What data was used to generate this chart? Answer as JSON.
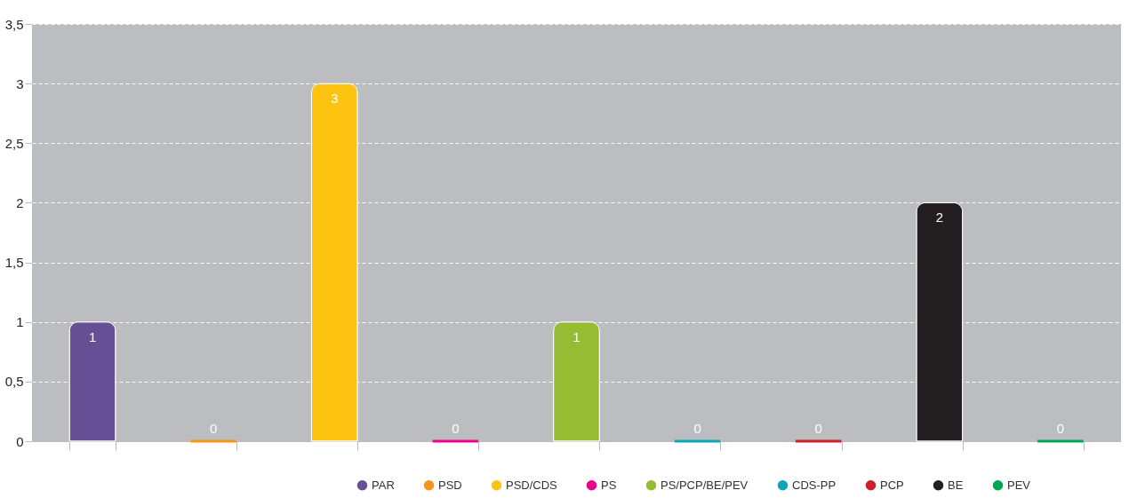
{
  "chart_data": {
    "type": "bar",
    "categories": [
      null,
      null,
      null,
      null,
      null,
      null,
      null,
      null,
      null
    ],
    "series": [
      {
        "name": "PAR",
        "color": "#664f94",
        "values": [
          1,
          null,
          null,
          null,
          null,
          null,
          null,
          null,
          null
        ]
      },
      {
        "name": "PSD",
        "color": "#f7941d",
        "values": [
          null,
          0,
          null,
          null,
          null,
          null,
          null,
          null,
          null
        ]
      },
      {
        "name": "PSD/CDS",
        "color": "#fdc311",
        "values": [
          null,
          null,
          3,
          null,
          null,
          null,
          null,
          null,
          null
        ]
      },
      {
        "name": "PS",
        "color": "#ec008c",
        "values": [
          null,
          null,
          null,
          0,
          null,
          null,
          null,
          null,
          null
        ]
      },
      {
        "name": "PS/PCP/BE/PEV",
        "color": "#95bc32",
        "values": [
          null,
          null,
          null,
          null,
          1,
          null,
          null,
          null,
          null
        ]
      },
      {
        "name": "CDS-PP",
        "color": "#0ba6b8",
        "values": [
          null,
          null,
          null,
          null,
          null,
          0,
          null,
          null,
          null
        ]
      },
      {
        "name": "PCP",
        "color": "#cc1f2a",
        "values": [
          null,
          null,
          null,
          null,
          null,
          null,
          0,
          null,
          null
        ]
      },
      {
        "name": "BE",
        "color": "#231f20",
        "values": [
          null,
          null,
          null,
          null,
          null,
          null,
          null,
          2,
          null
        ]
      },
      {
        "name": "PEV",
        "color": "#00a651",
        "values": [
          null,
          null,
          null,
          null,
          null,
          null,
          null,
          null,
          0
        ]
      }
    ],
    "ylim": [
      0,
      3.5
    ],
    "yticks": [
      0,
      {
        "value": 0.5,
        "label": "0,5"
      },
      1,
      {
        "value": 1.5,
        "label": "1,5"
      },
      2,
      {
        "value": 2.5,
        "label": "2,5"
      },
      3,
      {
        "value": 3.5,
        "label": "3,5"
      }
    ],
    "grid": "y",
    "line_style": "dashed",
    "legend": "bottom right",
    "data_labels": true,
    "tick_labels": "y"
  }
}
